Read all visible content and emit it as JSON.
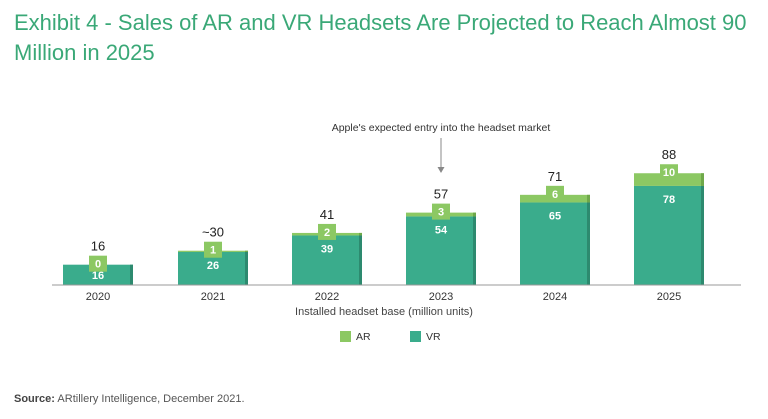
{
  "title": "Exhibit 4 - Sales of AR and VR Headsets Are Projected to Reach Almost 90 Million in 2025",
  "source_label": "Source:",
  "source_text": " ARtillery Intelligence, December 2021.",
  "colors": {
    "vr": "#3aac8c",
    "ar": "#8cc863",
    "vr_shade": "#2d8a6f",
    "ar_shade": "#6fa84a",
    "title": "#3aa877"
  },
  "chart_data": {
    "type": "bar",
    "stacked": true,
    "categories": [
      "2020",
      "2021",
      "2022",
      "2023",
      "2024",
      "2025"
    ],
    "series": [
      {
        "name": "VR",
        "values": [
          16,
          26,
          39,
          54,
          65,
          78
        ]
      },
      {
        "name": "AR",
        "values": [
          0,
          1,
          2,
          3,
          6,
          10
        ]
      }
    ],
    "totals": [
      "16",
      "~30",
      "41",
      "57",
      "71",
      "88"
    ],
    "xlabel": "Installed headset base (million units)",
    "ylabel": "",
    "ylim": [
      0,
      100
    ],
    "grid": false,
    "legend": "bottom-center",
    "annotation": {
      "text": "Apple's expected entry into the headset market",
      "category": "2023"
    }
  }
}
